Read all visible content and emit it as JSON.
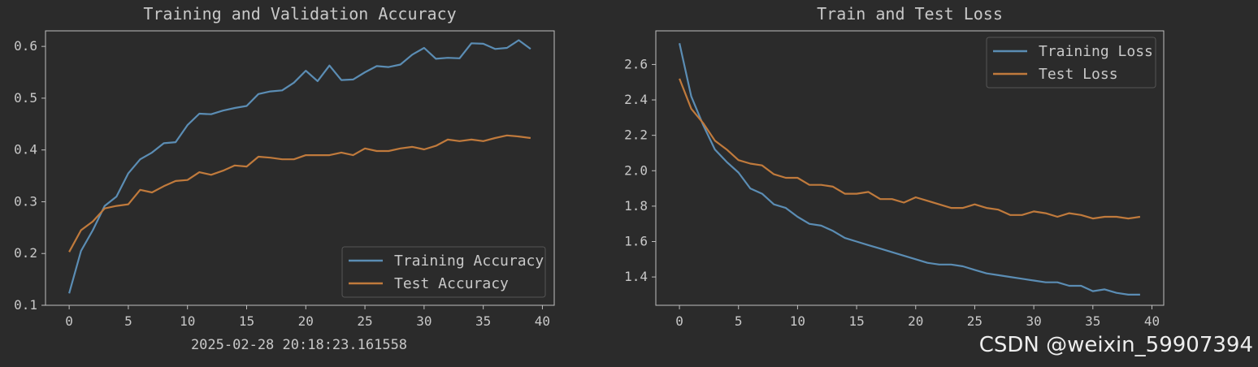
{
  "chart_data": [
    {
      "type": "line",
      "title": "Training and Validation Accuracy",
      "xlabel": "",
      "ylabel": "",
      "xlim": [
        -2,
        41
      ],
      "ylim": [
        0.1,
        0.63
      ],
      "xticks": [
        0,
        5,
        10,
        15,
        20,
        25,
        30,
        35,
        40
      ],
      "yticks": [
        0.1,
        0.2,
        0.3,
        0.4,
        0.5,
        0.6
      ],
      "legend": "bottom-right",
      "x": [
        0,
        1,
        2,
        3,
        4,
        5,
        6,
        7,
        8,
        9,
        10,
        11,
        12,
        13,
        14,
        15,
        16,
        17,
        18,
        19,
        20,
        21,
        22,
        23,
        24,
        25,
        26,
        27,
        28,
        29,
        30,
        31,
        32,
        33,
        34,
        35,
        36,
        37,
        38,
        39
      ],
      "series": [
        {
          "name": "Training Accuracy",
          "color": "#5b8db4",
          "values": [
            0.123,
            0.205,
            0.245,
            0.292,
            0.31,
            0.355,
            0.382,
            0.395,
            0.413,
            0.415,
            0.448,
            0.47,
            0.469,
            0.476,
            0.481,
            0.485,
            0.508,
            0.513,
            0.515,
            0.53,
            0.553,
            0.533,
            0.563,
            0.535,
            0.536,
            0.55,
            0.562,
            0.56,
            0.565,
            0.584,
            0.597,
            0.576,
            0.578,
            0.577,
            0.606,
            0.605,
            0.595,
            0.597,
            0.612,
            0.595
          ]
        },
        {
          "name": "Test Accuracy",
          "color": "#c07a3c",
          "values": [
            0.203,
            0.245,
            0.262,
            0.287,
            0.292,
            0.295,
            0.323,
            0.318,
            0.33,
            0.34,
            0.342,
            0.357,
            0.352,
            0.36,
            0.37,
            0.368,
            0.387,
            0.385,
            0.382,
            0.382,
            0.39,
            0.39,
            0.39,
            0.395,
            0.39,
            0.403,
            0.398,
            0.398,
            0.403,
            0.406,
            0.401,
            0.408,
            0.42,
            0.417,
            0.42,
            0.417,
            0.423,
            0.428,
            0.426,
            0.423
          ]
        }
      ],
      "footer_text": "2025-02-28 20:18:23.161558"
    },
    {
      "type": "line",
      "title": "Train and Test Loss",
      "xlabel": "",
      "ylabel": "",
      "xlim": [
        -2,
        41
      ],
      "ylim": [
        1.24,
        2.79
      ],
      "xticks": [
        0,
        5,
        10,
        15,
        20,
        25,
        30,
        35,
        40
      ],
      "yticks": [
        "1.4",
        "1.6",
        "1.8",
        "2.0",
        "2.2",
        "2.4",
        "2.6"
      ],
      "legend": "top-right",
      "x": [
        0,
        1,
        2,
        3,
        4,
        5,
        6,
        7,
        8,
        9,
        10,
        11,
        12,
        13,
        14,
        15,
        16,
        17,
        18,
        19,
        20,
        21,
        22,
        23,
        24,
        25,
        26,
        27,
        28,
        29,
        30,
        31,
        32,
        33,
        34,
        35,
        36,
        37,
        38,
        39
      ],
      "series": [
        {
          "name": "Training Loss",
          "color": "#5b8db4",
          "values": [
            2.72,
            2.42,
            2.26,
            2.12,
            2.05,
            1.99,
            1.9,
            1.87,
            1.81,
            1.79,
            1.74,
            1.7,
            1.69,
            1.66,
            1.62,
            1.6,
            1.58,
            1.56,
            1.54,
            1.52,
            1.5,
            1.48,
            1.47,
            1.47,
            1.46,
            1.44,
            1.42,
            1.41,
            1.4,
            1.39,
            1.38,
            1.37,
            1.37,
            1.35,
            1.35,
            1.32,
            1.33,
            1.31,
            1.3,
            1.3
          ]
        },
        {
          "name": "Test Loss",
          "color": "#c07a3c",
          "values": [
            2.52,
            2.35,
            2.27,
            2.17,
            2.12,
            2.06,
            2.04,
            2.03,
            1.98,
            1.96,
            1.96,
            1.92,
            1.92,
            1.91,
            1.87,
            1.87,
            1.88,
            1.84,
            1.84,
            1.82,
            1.85,
            1.83,
            1.81,
            1.79,
            1.79,
            1.81,
            1.79,
            1.78,
            1.75,
            1.75,
            1.77,
            1.76,
            1.74,
            1.76,
            1.75,
            1.73,
            1.74,
            1.74,
            1.73,
            1.74
          ]
        }
      ]
    }
  ],
  "watermark": "CSDN @weixin_59907394"
}
